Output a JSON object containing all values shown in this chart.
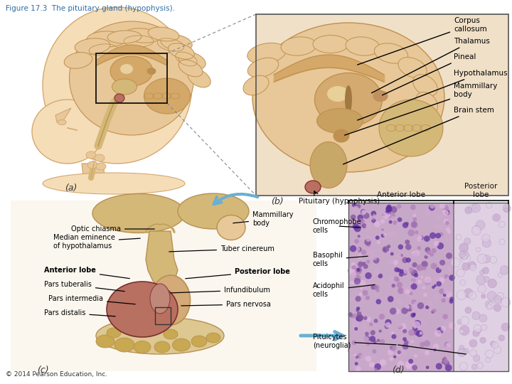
{
  "title": "Figure 17.3  The pituitary gland (hypophysis).",
  "title_color": "#2e6da4",
  "title_fontsize": 7.5,
  "bg_color": "#ffffff",
  "label_a": "(a)",
  "label_b": "(b)",
  "label_c": "(c)",
  "label_d": "(d)",
  "copyright": "© 2014 Pearson Education, Inc.",
  "panel_b_labels": [
    "Corpus\ncallosum",
    "Thalamus",
    "Pineal",
    "Hypothalamus",
    "Mammillary\nbody",
    "Brain stem"
  ],
  "panel_b_pituitary_label": "Pituitary (hypophysis)",
  "panel_c_left_labels_text": [
    "Optic chiasma",
    "Median eminence\nof hypothalamus",
    "Anterior lobe",
    "Pars tuberalis",
    "Pars intermedia",
    "Pars distalis"
  ],
  "panel_c_left_bold": [
    false,
    false,
    true,
    false,
    false,
    false
  ],
  "panel_c_right_labels_text": [
    "Mammillary\nbody",
    "Tuber cinereum",
    "Posterior lobe",
    "Infundibulum",
    "Pars nervosa"
  ],
  "panel_c_right_bold": [
    false,
    false,
    true,
    false,
    false
  ],
  "panel_d_top_labels": [
    "Anterior lobe",
    "Posterior\nlobe"
  ],
  "panel_d_left_labels": [
    "Chromophobe\ncells",
    "Basophil\ncells",
    "Acidophil\ncells",
    "Pituicytes\n(neuroglia)"
  ],
  "skin_light": "#f5ddb8",
  "skin_mid": "#e8c898",
  "skin_dark": "#d4a870",
  "brain_outer": "#e8c898",
  "brain_inner": "#d4a868",
  "brain_detail": "#c09050",
  "pit_anterior": "#b87060",
  "pit_posterior": "#d4aa78",
  "bone_color": "#dcc890",
  "bone_hole": "#c8a850",
  "tissue_tan": "#d4b878",
  "tissue_dark": "#b89050",
  "micro_ant": "#c8a8c8",
  "micro_post": "#e0d0e4",
  "micro_cell_dark": "#8050a0",
  "micro_cell_mid": "#b080b8",
  "micro_cell_light": "#d0a8d0",
  "arrow_color": "#6ab0d0",
  "line_color": "#000000",
  "dashed_color": "#888888"
}
